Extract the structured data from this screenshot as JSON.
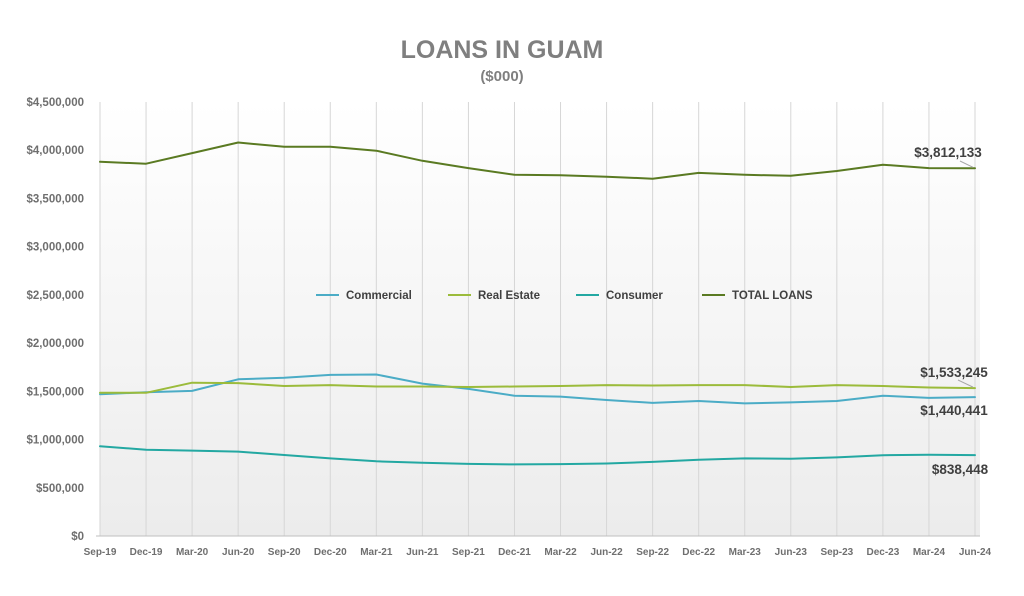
{
  "chart_data": {
    "type": "line",
    "title": "LOANS IN GUAM",
    "subtitle": "($000)",
    "xlabel": "",
    "ylabel": "",
    "ylim": [
      0,
      4500000
    ],
    "yticks": [
      "$0",
      "$500,000",
      "$1,000,000",
      "$1,500,000",
      "$2,000,000",
      "$2,500,000",
      "$3,000,000",
      "$3,500,000",
      "$4,000,000",
      "$4,500,000"
    ],
    "ytick_values": [
      0,
      500000,
      1000000,
      1500000,
      2000000,
      2500000,
      3000000,
      3500000,
      4000000,
      4500000
    ],
    "categories": [
      "Sep-19",
      "Dec-19",
      "Mar-20",
      "Jun-20",
      "Sep-20",
      "Dec-20",
      "Mar-21",
      "Jun-21",
      "Sep-21",
      "Dec-21",
      "Mar-22",
      "Jun-22",
      "Sep-22",
      "Dec-22",
      "Mar-23",
      "Jun-23",
      "Sep-23",
      "Dec-23",
      "Mar-24",
      "Jun-24"
    ],
    "grid": "vertical",
    "legend_position": "center",
    "series": [
      {
        "name": "Commercial",
        "color": "#4bacc6",
        "values": [
          1470000,
          1490000,
          1505000,
          1625000,
          1640000,
          1670000,
          1675000,
          1580000,
          1525000,
          1455000,
          1445000,
          1410000,
          1380000,
          1400000,
          1375000,
          1385000,
          1400000,
          1455000,
          1432000,
          1440441
        ],
        "end_label": "$1,440,441"
      },
      {
        "name": "Real Estate",
        "color": "#9bbb3b",
        "values": [
          1485000,
          1485000,
          1590000,
          1585000,
          1555000,
          1565000,
          1550000,
          1550000,
          1545000,
          1550000,
          1555000,
          1565000,
          1560000,
          1565000,
          1565000,
          1545000,
          1565000,
          1555000,
          1540000,
          1533245
        ],
        "end_label": "$1,533,245"
      },
      {
        "name": "Consumer",
        "color": "#23a8a2",
        "values": [
          930000,
          895000,
          885000,
          875000,
          840000,
          805000,
          775000,
          760000,
          748000,
          742000,
          745000,
          752000,
          768000,
          790000,
          805000,
          800000,
          815000,
          838000,
          843000,
          838448
        ],
        "end_label": "$838,448"
      },
      {
        "name": "TOTAL LOANS",
        "color": "#5a7a22",
        "values": [
          3880000,
          3860000,
          3970000,
          4080000,
          4035000,
          4035000,
          3995000,
          3890000,
          3815000,
          3745000,
          3740000,
          3725000,
          3705000,
          3765000,
          3745000,
          3735000,
          3785000,
          3850000,
          3815000,
          3812133
        ],
        "end_label": "$3,812,133"
      }
    ]
  }
}
